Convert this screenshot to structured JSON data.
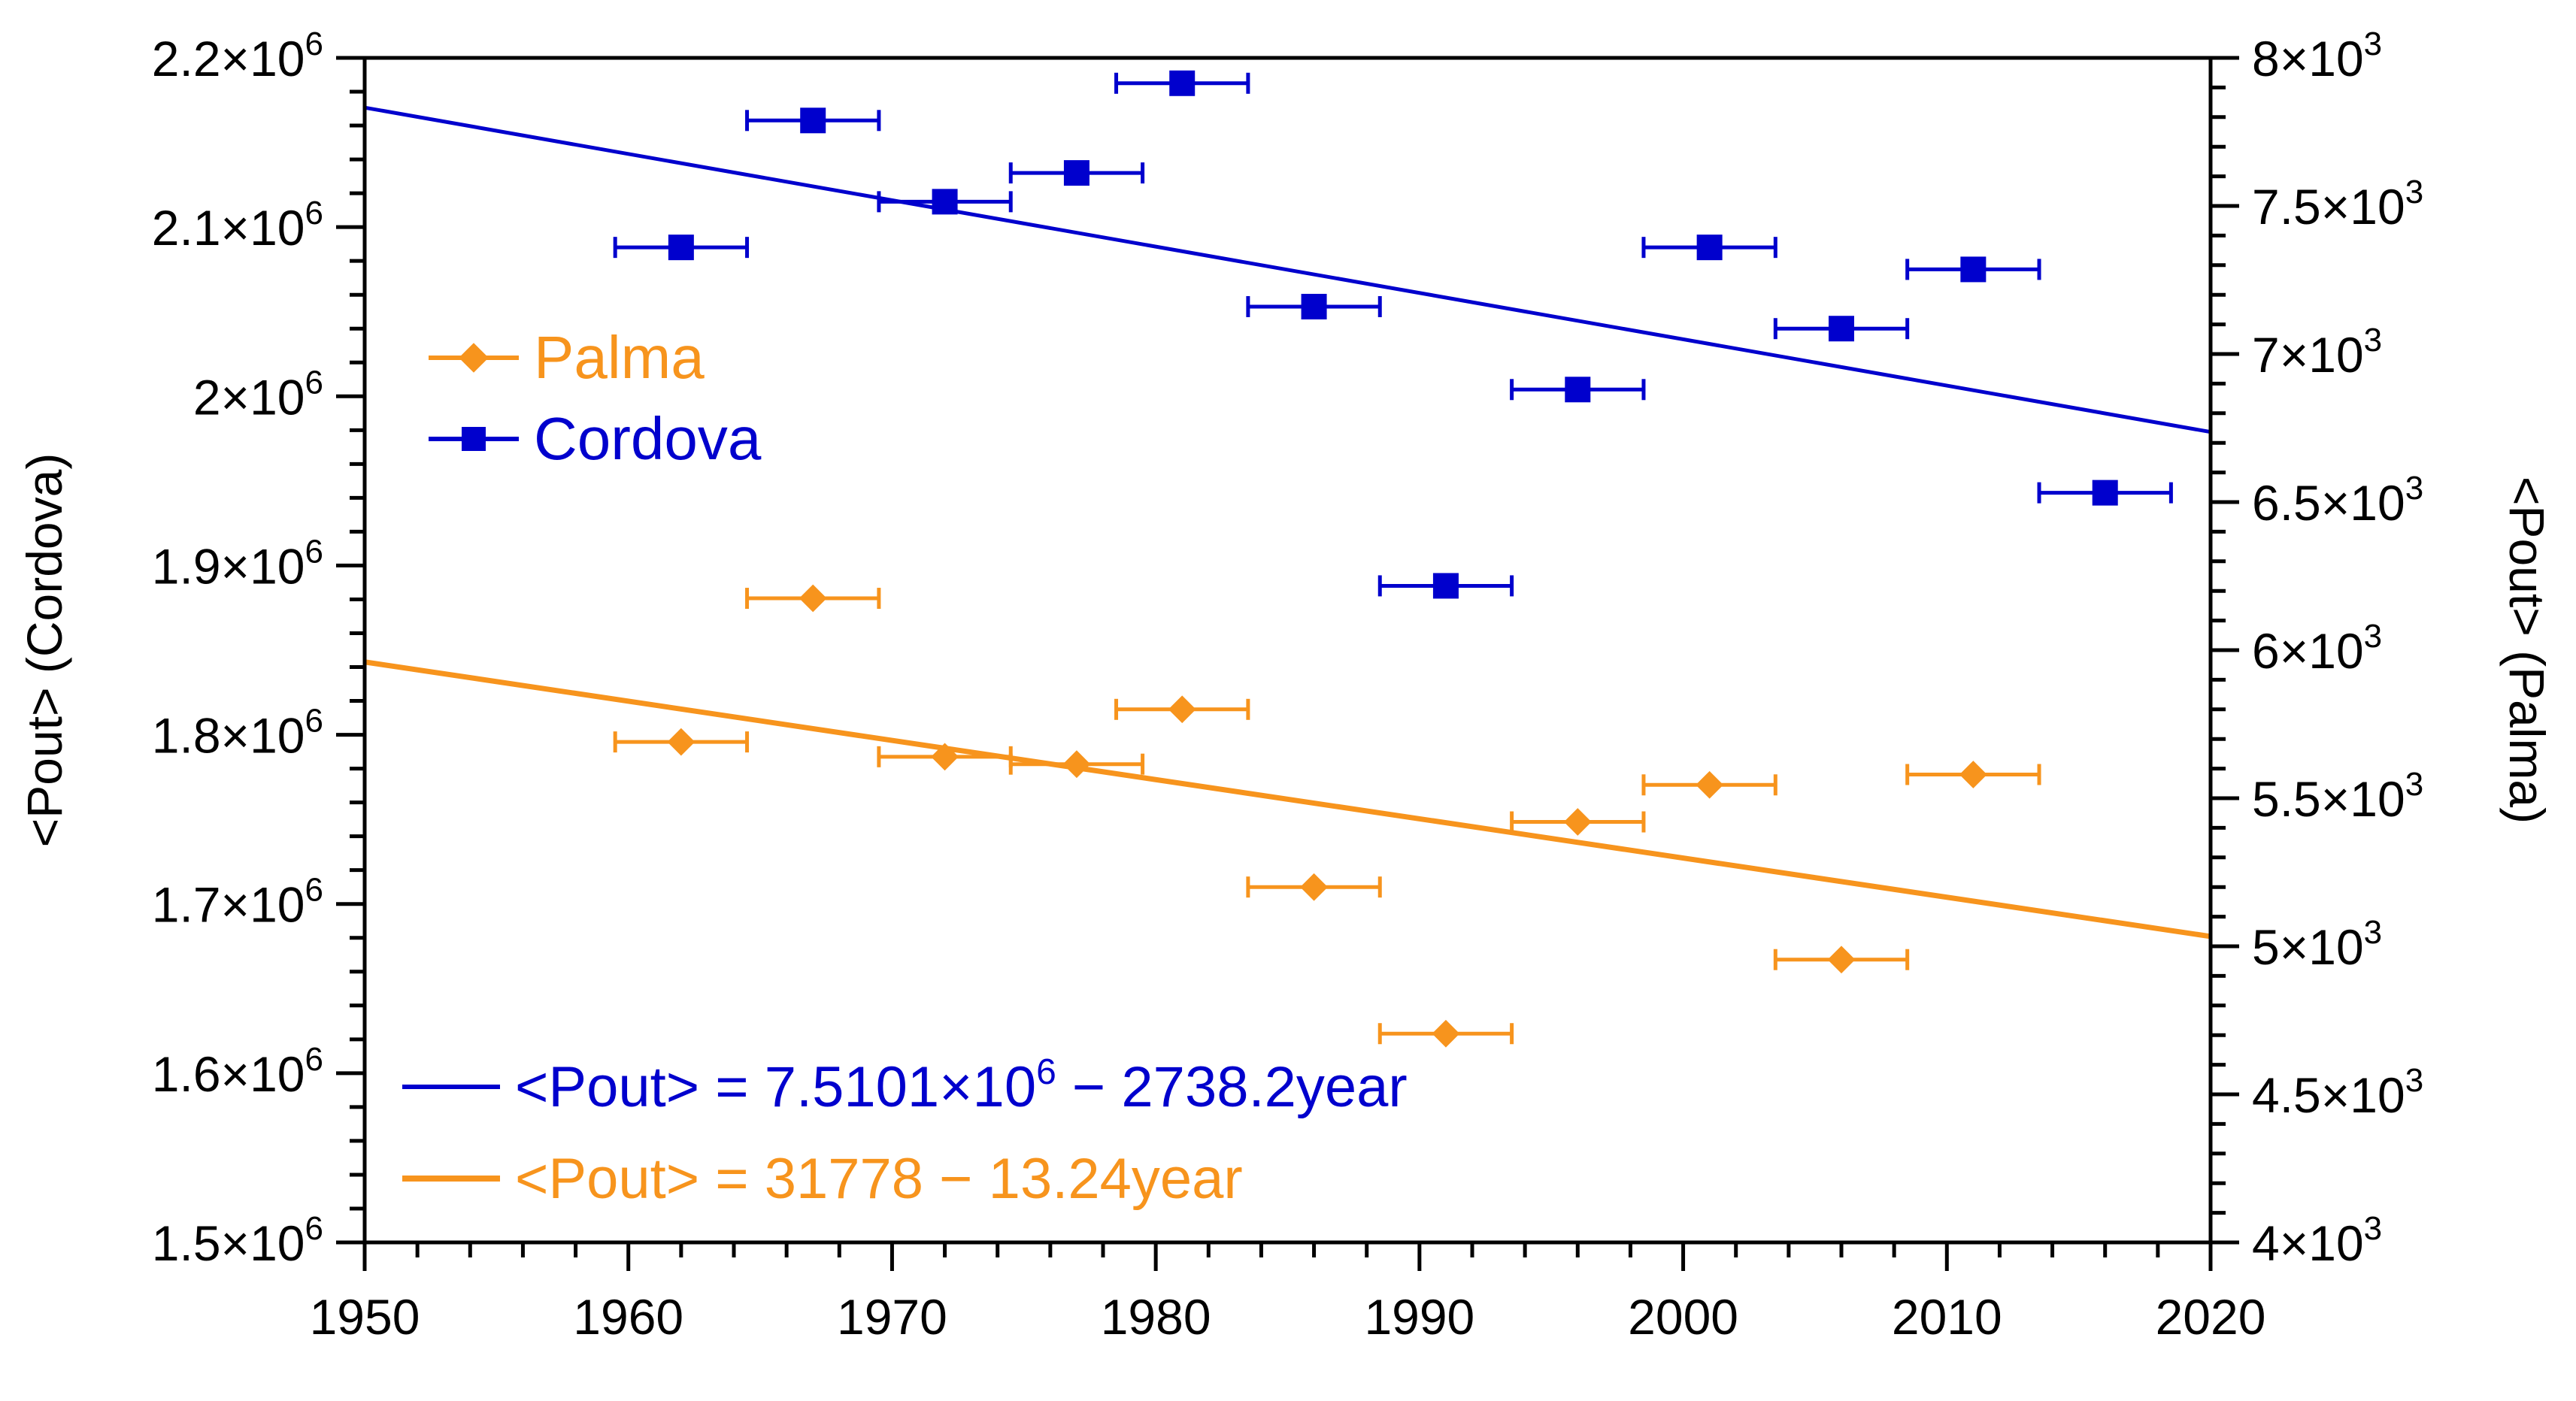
{
  "chart_data": {
    "type": "scatter",
    "title": "",
    "xlabel": "",
    "x_ticks": [
      "1950",
      "1960",
      "1970",
      "1980",
      "1990",
      "2000",
      "2010",
      "2020"
    ],
    "xlim": [
      1950,
      2020
    ],
    "y_left": {
      "label": "<Pout> (Cordova)",
      "range": [
        1500000,
        2200000
      ],
      "ticks": [
        {
          "value": 1500000,
          "mantissa": "1.5×10",
          "exp": "6"
        },
        {
          "value": 1600000,
          "mantissa": "1.6×10",
          "exp": "6"
        },
        {
          "value": 1700000,
          "mantissa": "1.7×10",
          "exp": "6"
        },
        {
          "value": 1800000,
          "mantissa": "1.8×10",
          "exp": "6"
        },
        {
          "value": 1900000,
          "mantissa": "1.9×10",
          "exp": "6"
        },
        {
          "value": 2000000,
          "mantissa": "2×10",
          "exp": "6"
        },
        {
          "value": 2100000,
          "mantissa": "2.1×10",
          "exp": "6"
        },
        {
          "value": 2200000,
          "mantissa": "2.2×10",
          "exp": "6"
        }
      ]
    },
    "y_right": {
      "label": "<Pout> (Palma)",
      "range": [
        4000,
        8000
      ],
      "ticks": [
        {
          "value": 4000,
          "mantissa": "4×10",
          "exp": "3"
        },
        {
          "value": 4500,
          "mantissa": "4.5×10",
          "exp": "3"
        },
        {
          "value": 5000,
          "mantissa": "5×10",
          "exp": "3"
        },
        {
          "value": 5500,
          "mantissa": "5.5×10",
          "exp": "3"
        },
        {
          "value": 6000,
          "mantissa": "6×10",
          "exp": "3"
        },
        {
          "value": 6500,
          "mantissa": "6.5×10",
          "exp": "3"
        },
        {
          "value": 7000,
          "mantissa": "7×10",
          "exp": "3"
        },
        {
          "value": 7500,
          "mantissa": "7.5×10",
          "exp": "3"
        },
        {
          "value": 8000,
          "mantissa": "8×10",
          "exp": "3"
        }
      ]
    },
    "xerror_halfwidth_years": 2.5,
    "series": [
      {
        "name": "Cordova",
        "axis": "left",
        "color": "#0000CD",
        "marker": "square",
        "x": [
          1962,
          1967,
          1972,
          1977,
          1981,
          1986,
          1991,
          1996,
          2001,
          2006,
          2011,
          2016
        ],
        "y": [
          2088000,
          2163000,
          2115000,
          2132000,
          2185000,
          2053000,
          1888000,
          2004000,
          2088000,
          2040000,
          2075000,
          1943000
        ]
      },
      {
        "name": "Palma",
        "axis": "right",
        "color": "#F7941D",
        "marker": "diamond",
        "x": [
          1962,
          1967,
          1972,
          1977,
          1981,
          1986,
          1991,
          1996,
          2001,
          2006,
          2011
        ],
        "y": [
          5690,
          6175,
          5640,
          5615,
          5800,
          5200,
          4705,
          5420,
          5545,
          4955,
          5580
        ]
      }
    ],
    "fits": [
      {
        "series": "Cordova",
        "axis": "left",
        "color": "#0000CD",
        "intercept": 7510100,
        "slope": -2738.2,
        "label_pre": "<Pout> = 7.5101×10",
        "label_exp": "6",
        "label_post": " − 2738.2year"
      },
      {
        "series": "Palma",
        "axis": "right",
        "color": "#F7941D",
        "intercept": 31778,
        "slope": -13.24,
        "label": "<Pout> = 31778 − 13.24year"
      }
    ],
    "legend": {
      "placement": "upper-left",
      "entries": [
        "Palma",
        "Cordova"
      ]
    }
  }
}
